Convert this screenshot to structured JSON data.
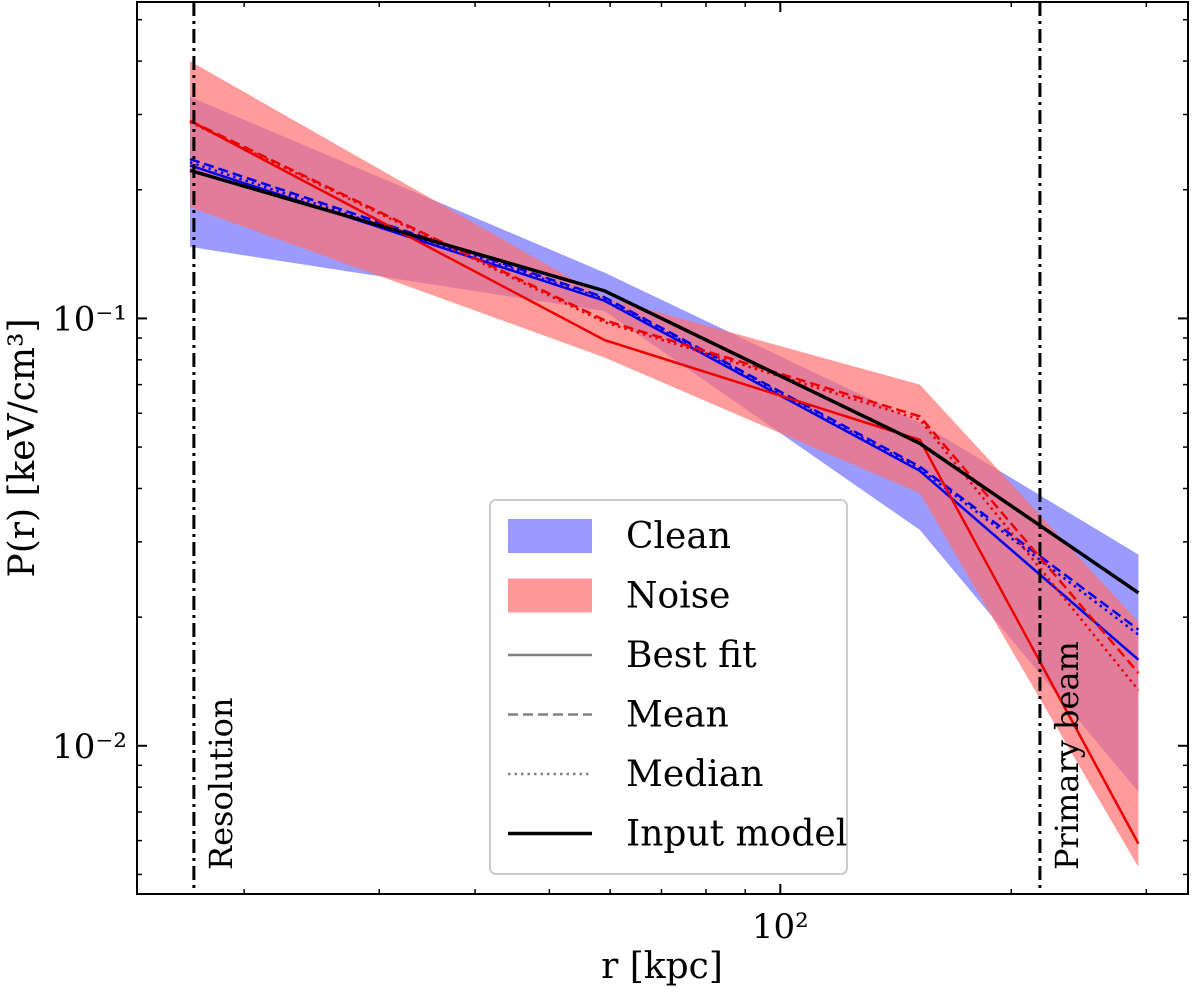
{
  "chart_data": {
    "type": "line",
    "xscale": "log",
    "yscale": "log",
    "xlabel": "r [kpc]",
    "ylabel": "P(r) [keV/cm³]",
    "xlim": [
      14.5,
      340
    ],
    "ylim": [
      0.0045,
      0.55
    ],
    "x_major_ticks": [
      {
        "value": 100,
        "label": "10²"
      }
    ],
    "x_minor_ticks": [
      20,
      30,
      40,
      50,
      60,
      70,
      80,
      90,
      200,
      300
    ],
    "y_major_ticks": [
      {
        "value": 0.1,
        "label": "10⁻¹"
      },
      {
        "value": 0.01,
        "label": "10⁻²"
      }
    ],
    "y_minor_ticks": [
      0.005,
      0.006,
      0.007,
      0.008,
      0.009,
      0.02,
      0.03,
      0.04,
      0.05,
      0.06,
      0.07,
      0.08,
      0.09,
      0.2,
      0.3,
      0.4,
      0.5
    ],
    "x": [
      17.0,
      59.0,
      152.0,
      293.0
    ],
    "bands": [
      {
        "name": "Clean",
        "color": "#6666ff",
        "opacity": 0.65,
        "lower": [
          0.147,
          0.104,
          0.032,
          0.0078
        ],
        "upper": [
          0.33,
          0.128,
          0.057,
          0.028
        ]
      },
      {
        "name": "Noise",
        "color": "#ff7070",
        "opacity": 0.7,
        "lower": [
          0.182,
          0.081,
          0.039,
          0.0052
        ],
        "upper": [
          0.4,
          0.112,
          0.07,
          0.0195
        ]
      }
    ],
    "series": [
      {
        "name": "Clean best fit",
        "color": "#0000ee",
        "style": "solid",
        "values": [
          0.228,
          0.11,
          0.044,
          0.0159
        ]
      },
      {
        "name": "Clean mean",
        "color": "#0000ee",
        "style": "dashed",
        "values": [
          0.236,
          0.112,
          0.045,
          0.0187
        ]
      },
      {
        "name": "Clean median",
        "color": "#0000ee",
        "style": "dotted",
        "values": [
          0.232,
          0.111,
          0.0445,
          0.0182
        ]
      },
      {
        "name": "Noise best fit",
        "color": "#ee0000",
        "style": "solid",
        "values": [
          0.29,
          0.089,
          0.052,
          0.0059
        ]
      },
      {
        "name": "Noise mean",
        "color": "#ee0000",
        "style": "dashed",
        "values": [
          0.29,
          0.099,
          0.059,
          0.0148
        ]
      },
      {
        "name": "Noise median",
        "color": "#ee0000",
        "style": "dotted",
        "values": [
          0.288,
          0.098,
          0.058,
          0.0135
        ]
      },
      {
        "name": "Input model",
        "color": "#000000",
        "style": "solid-thick",
        "values": [
          0.222,
          0.116,
          0.051,
          0.0228
        ]
      }
    ],
    "vlines": [
      {
        "x": 17.2,
        "label": "Resolution"
      },
      {
        "x": 218,
        "label": "Primary beam"
      }
    ],
    "legend": {
      "position": "lower-center",
      "entries": [
        {
          "label": "Clean",
          "kind": "patch",
          "color": "#9999ff"
        },
        {
          "label": "Noise",
          "kind": "patch",
          "color": "#ff9999"
        },
        {
          "label": "Best fit",
          "kind": "line",
          "style": "solid",
          "color": "#808080"
        },
        {
          "label": "Mean",
          "kind": "line",
          "style": "dashed",
          "color": "#808080"
        },
        {
          "label": "Median",
          "kind": "line",
          "style": "dotted",
          "color": "#808080"
        },
        {
          "label": "Input model",
          "kind": "line",
          "style": "solid-thick",
          "color": "#000000"
        }
      ]
    }
  }
}
